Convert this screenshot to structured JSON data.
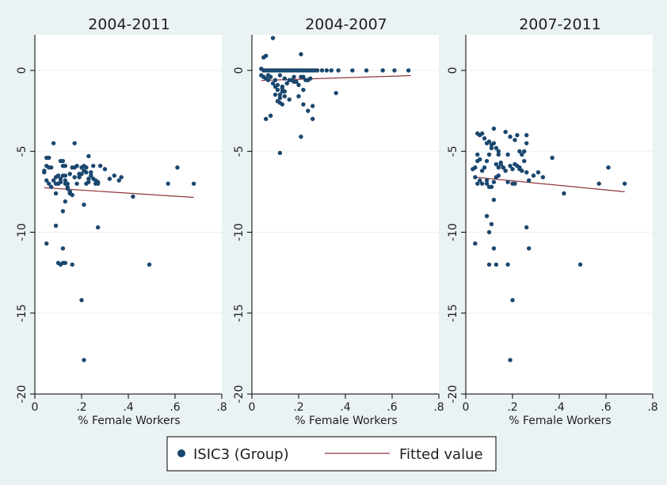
{
  "chart_data": [
    {
      "type": "scatter",
      "title": "2004-2011",
      "xlabel": "% Female Workers",
      "ylabel": "",
      "xlim": [
        0,
        0.8
      ],
      "ylim": [
        -20,
        2.2
      ],
      "xticks": [
        0,
        0.2,
        0.4,
        0.6,
        0.8
      ],
      "xtick_labels": [
        "0",
        ".2",
        ".4",
        ".6",
        ".8"
      ],
      "yticks": [
        0,
        -5,
        -10,
        -15,
        -20
      ],
      "ytick_labels": [
        "0",
        "-5",
        "-10",
        "-15",
        "-20"
      ],
      "grid": true,
      "series": [
        {
          "name": "ISIC3 (Group)",
          "kind": "scatter",
          "x": [
            0.04,
            0.05,
            0.06,
            0.04,
            0.05,
            0.06,
            0.07,
            0.05,
            0.06,
            0.08,
            0.09,
            0.1,
            0.11,
            0.12,
            0.13,
            0.1,
            0.11,
            0.12,
            0.13,
            0.14,
            0.15,
            0.16,
            0.17,
            0.18,
            0.19,
            0.2,
            0.21,
            0.22,
            0.23,
            0.24,
            0.25,
            0.08,
            0.09,
            0.11,
            0.12,
            0.13,
            0.14,
            0.15,
            0.17,
            0.19,
            0.21,
            0.22,
            0.23,
            0.24,
            0.26,
            0.27,
            0.28,
            0.3,
            0.32,
            0.34,
            0.36,
            0.13,
            0.14,
            0.16,
            0.18,
            0.2,
            0.22,
            0.25,
            0.1,
            0.11,
            0.12,
            0.13,
            0.15,
            0.21,
            0.26,
            0.17,
            0.23,
            0.27,
            0.12,
            0.37,
            0.42,
            0.57,
            0.61,
            0.68,
            0.49,
            0.05,
            0.12,
            0.16,
            0.2,
            0.21,
            0.13,
            0.11,
            0.1,
            0.09,
            0.07,
            0.09,
            0.15,
            0.19,
            0.27
          ],
          "y": [
            -6.2,
            -5.9,
            -6.0,
            -6.3,
            -5.4,
            -5.4,
            -6.0,
            -6.8,
            -7.0,
            -4.5,
            -7.0,
            -7.0,
            -5.6,
            -5.9,
            -5.9,
            -6.5,
            -6.9,
            -6.5,
            -6.8,
            -7.2,
            -6.4,
            -6.0,
            -4.5,
            -5.9,
            -6.6,
            -6.0,
            -5.9,
            -6.3,
            -5.3,
            -6.3,
            -5.9,
            -6.8,
            -7.6,
            -6.7,
            -5.6,
            -6.5,
            -7.0,
            -7.5,
            -6.0,
            -6.4,
            -6.2,
            -6.0,
            -6.9,
            -6.5,
            -6.8,
            -6.9,
            -5.9,
            -6.1,
            -6.7,
            -6.5,
            -6.8,
            -7.0,
            -7.3,
            -7.7,
            -7.0,
            -6.4,
            -7.0,
            -6.7,
            -7.0,
            -6.9,
            -8.7,
            -8.1,
            -7.5,
            -8.3,
            -7.0,
            -6.6,
            -6.7,
            -7.0,
            -11.0,
            -6.6,
            -7.8,
            -7.0,
            -6.0,
            -7.0,
            -12.0,
            -10.7,
            -11.9,
            -12.0,
            -14.2,
            -17.9,
            -11.9,
            -12.0,
            -11.9,
            -9.6,
            -7.2,
            -6.6,
            -7.6,
            -6.4,
            -9.7
          ]
        },
        {
          "name": "Fitted value",
          "kind": "line",
          "x": [
            0.04,
            0.68
          ],
          "y": [
            -7.25,
            -7.85
          ]
        }
      ]
    },
    {
      "type": "scatter",
      "title": "2004-2007",
      "xlabel": "% Female Workers",
      "ylabel": "",
      "xlim": [
        0,
        0.8
      ],
      "ylim": [
        -20,
        2.2
      ],
      "xticks": [
        0,
        0.2,
        0.4,
        0.6,
        0.8
      ],
      "xtick_labels": [
        "0",
        ".2",
        ".4",
        ".6",
        ".8"
      ],
      "yticks": [
        0,
        -5,
        -10,
        -15,
        -20
      ],
      "ytick_labels": [
        "0",
        "-5",
        "-10",
        "-15",
        "-20"
      ],
      "grid": true,
      "series": [
        {
          "name": "ISIC3 (Group)",
          "kind": "scatter",
          "x": [
            0.04,
            0.05,
            0.06,
            0.07,
            0.08,
            0.09,
            0.1,
            0.11,
            0.12,
            0.13,
            0.14,
            0.15,
            0.16,
            0.17,
            0.18,
            0.19,
            0.2,
            0.21,
            0.22,
            0.23,
            0.24,
            0.25,
            0.26,
            0.27,
            0.28,
            0.3,
            0.32,
            0.34,
            0.37,
            0.43,
            0.49,
            0.56,
            0.61,
            0.67,
            0.05,
            0.06,
            0.05,
            0.07,
            0.09,
            0.21,
            0.04,
            0.06,
            0.08,
            0.1,
            0.12,
            0.14,
            0.16,
            0.18,
            0.22,
            0.24,
            0.05,
            0.07,
            0.09,
            0.11,
            0.13,
            0.15,
            0.17,
            0.19,
            0.21,
            0.23,
            0.25,
            0.1,
            0.11,
            0.12,
            0.13,
            0.14,
            0.11,
            0.12,
            0.13,
            0.1,
            0.12,
            0.14,
            0.16,
            0.2,
            0.22,
            0.24,
            0.26,
            0.18,
            0.2,
            0.22,
            0.13,
            0.12,
            0.21,
            0.26,
            0.36,
            0.06,
            0.08
          ],
          "y": [
            0.1,
            0.0,
            0.0,
            0.0,
            0.0,
            0.0,
            0.0,
            0.0,
            0.0,
            0.0,
            0.0,
            0.0,
            0.0,
            0.0,
            0.0,
            0.0,
            0.0,
            0.0,
            0.0,
            0.0,
            0.0,
            0.0,
            0.0,
            0.0,
            0.0,
            0.0,
            0.0,
            0.0,
            0.0,
            0.0,
            0.0,
            0.0,
            0.0,
            0.0,
            0.8,
            0.9,
            -0.4,
            -0.3,
            2.0,
            1.0,
            -0.3,
            -0.5,
            -0.4,
            -0.6,
            -0.3,
            -0.5,
            -0.6,
            -0.4,
            -0.4,
            -0.6,
            -0.4,
            -0.6,
            -0.8,
            -0.9,
            -1.0,
            -0.8,
            -0.6,
            -0.7,
            -0.4,
            -0.6,
            -0.5,
            -1.0,
            -1.2,
            -1.5,
            -1.1,
            -1.6,
            -1.9,
            -2.0,
            -2.1,
            -1.5,
            -1.7,
            -1.3,
            -1.8,
            -1.6,
            -2.1,
            -2.5,
            -2.2,
            -0.7,
            -0.9,
            -1.2,
            -1.3,
            -5.1,
            -4.1,
            -3.0,
            -1.4,
            -3.0,
            -2.8
          ]
        },
        {
          "name": "Fitted value",
          "kind": "line",
          "x": [
            0.04,
            0.68
          ],
          "y": [
            -0.62,
            -0.32
          ]
        }
      ]
    },
    {
      "type": "scatter",
      "title": "2007-2011",
      "xlabel": "% Female Workers",
      "ylabel": "",
      "xlim": [
        0,
        0.8
      ],
      "ylim": [
        -20,
        2.2
      ],
      "xticks": [
        0,
        0.2,
        0.4,
        0.6,
        0.8
      ],
      "xtick_labels": [
        "0",
        ".2",
        ".4",
        ".6",
        ".8"
      ],
      "yticks": [
        0,
        -5,
        -10,
        -15,
        -20
      ],
      "ytick_labels": [
        "0",
        "-5",
        "-10",
        "-15",
        "-20"
      ],
      "grid": true,
      "series": [
        {
          "name": "ISIC3 (Group)",
          "kind": "scatter",
          "x": [
            0.03,
            0.04,
            0.05,
            0.05,
            0.06,
            0.07,
            0.08,
            0.09,
            0.1,
            0.11,
            0.12,
            0.13,
            0.14,
            0.15,
            0.16,
            0.17,
            0.18,
            0.19,
            0.2,
            0.21,
            0.22,
            0.23,
            0.24,
            0.25,
            0.26,
            0.05,
            0.06,
            0.07,
            0.08,
            0.09,
            0.1,
            0.11,
            0.12,
            0.13,
            0.14,
            0.15,
            0.17,
            0.19,
            0.21,
            0.22,
            0.23,
            0.24,
            0.25,
            0.26,
            0.27,
            0.29,
            0.31,
            0.33,
            0.05,
            0.06,
            0.09,
            0.1,
            0.12,
            0.13,
            0.14,
            0.16,
            0.18,
            0.2,
            0.23,
            0.26,
            0.04,
            0.07,
            0.09,
            0.11,
            0.14,
            0.21,
            0.37,
            0.42,
            0.57,
            0.61,
            0.68,
            0.12,
            0.09,
            0.11,
            0.1,
            0.12,
            0.13,
            0.1,
            0.18,
            0.26,
            0.49,
            0.2,
            0.19,
            0.04,
            0.27
          ],
          "y": [
            -6.1,
            -6.0,
            -5.6,
            -5.2,
            -5.5,
            -6.2,
            -6.0,
            -5.6,
            -5.2,
            -4.8,
            -4.5,
            -5.8,
            -5.0,
            -5.7,
            -6.0,
            -6.2,
            -5.2,
            -5.9,
            -6.1,
            -5.8,
            -5.9,
            -6.0,
            -6.2,
            -5.6,
            -4.5,
            -3.9,
            -4.0,
            -3.9,
            -4.2,
            -4.5,
            -4.4,
            -4.6,
            -3.6,
            -4.8,
            -5.2,
            -5.8,
            -3.8,
            -4.1,
            -4.3,
            -4.0,
            -5.0,
            -5.2,
            -5.0,
            -4.0,
            -6.8,
            -6.5,
            -6.3,
            -6.6,
            -7.0,
            -6.8,
            -7.0,
            -7.2,
            -6.9,
            -6.6,
            -6.5,
            -6.0,
            -6.9,
            -7.0,
            -6.1,
            -6.3,
            -6.6,
            -7.0,
            -6.8,
            -7.2,
            -6.0,
            -7.0,
            -5.4,
            -7.6,
            -7.0,
            -6.0,
            -7.0,
            -8.0,
            -9.0,
            -9.5,
            -10.0,
            -11.0,
            -12.0,
            -12.0,
            -12.0,
            -9.7,
            -12.0,
            -14.2,
            -17.9,
            -10.7,
            -11.0
          ]
        },
        {
          "name": "Fitted value",
          "kind": "line",
          "x": [
            0.04,
            0.68
          ],
          "y": [
            -6.6,
            -7.5
          ]
        }
      ]
    }
  ],
  "legend": {
    "items": [
      {
        "label": "ISIC3 (Group)",
        "marker": "circle",
        "color": "#1a476f"
      },
      {
        "label": "Fitted value",
        "marker": "line",
        "color": "#90353b"
      }
    ]
  },
  "colors": {
    "background": "#eaf2f3",
    "plot_background": "#ffffff",
    "grid": "#eaf2f3",
    "axis": "#000000",
    "marker": "#1a476f",
    "fit": "#90353b"
  }
}
